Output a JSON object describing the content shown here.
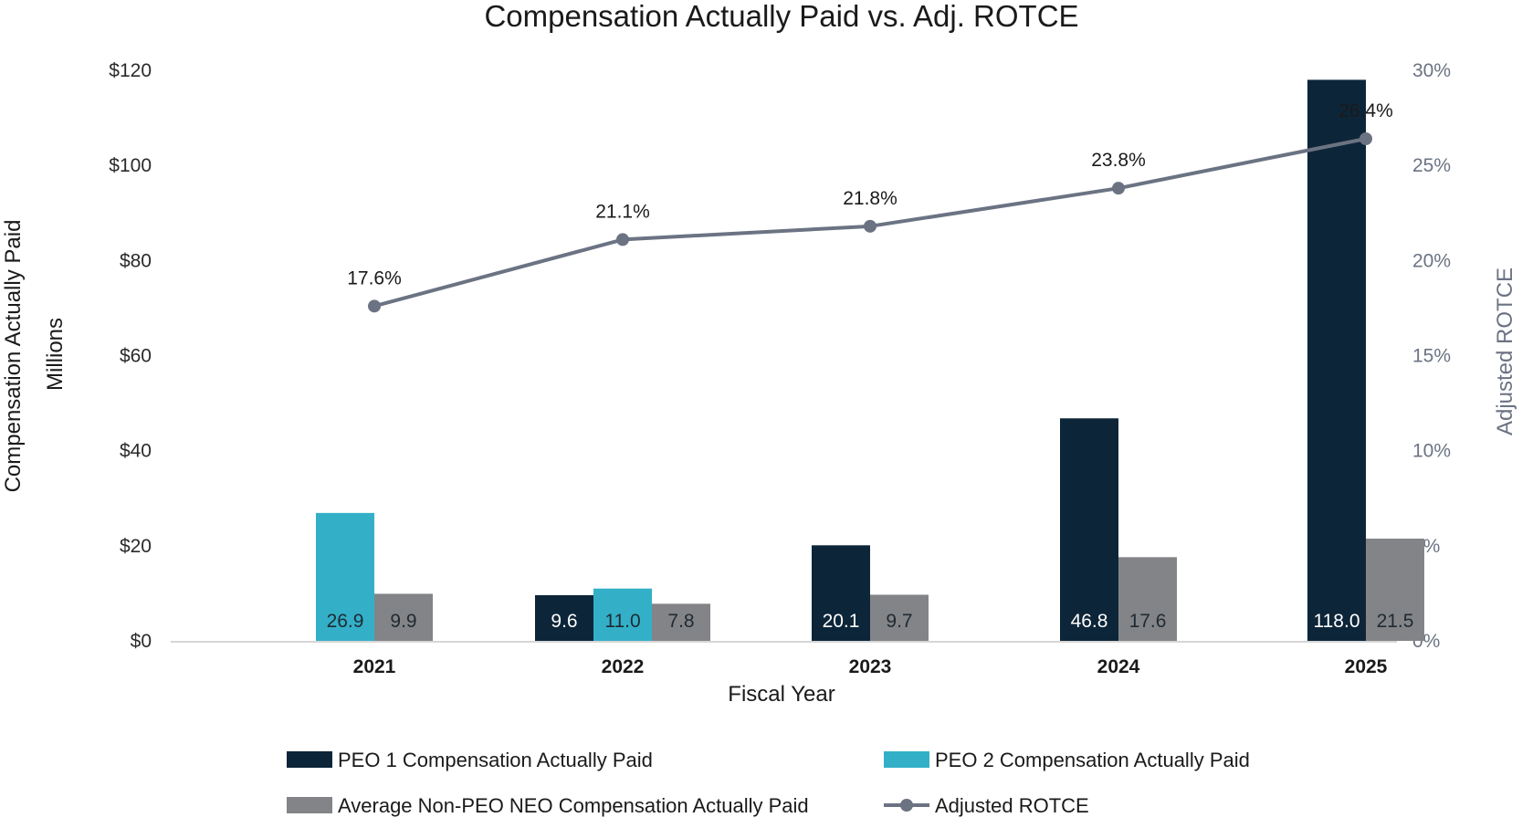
{
  "chart_data": {
    "type": "bar",
    "title": "Compensation Actually Paid vs. Adj. ROTCE",
    "xlabel": "Fiscal Year",
    "ylabel": "Compensation Actually Paid",
    "ylabel_unit": "Millions",
    "y2label": "Adjusted ROTCE",
    "categories": [
      "2021",
      "2022",
      "2023",
      "2024",
      "2025"
    ],
    "ylim": [
      0,
      120
    ],
    "y2lim": [
      0,
      30
    ],
    "y_ticks": [
      "$0",
      "$20",
      "$40",
      "$60",
      "$80",
      "$100",
      "$120"
    ],
    "y2_ticks": [
      "0%",
      "5%",
      "10%",
      "15%",
      "20%",
      "25%",
      "30%"
    ],
    "grid": false,
    "legend_position": "bottom",
    "series": [
      {
        "name": "PEO 1 Compensation Actually Paid",
        "type": "bar",
        "axis": "left",
        "color": "#0d2538",
        "values": [
          null,
          9.6,
          20.1,
          46.8,
          118.0
        ],
        "labels": [
          "",
          "9.6",
          "20.1",
          "46.8",
          "118.0"
        ]
      },
      {
        "name": "PEO 2 Compensation Actually Paid",
        "type": "bar",
        "axis": "left",
        "color": "#33b0c8",
        "values": [
          26.9,
          11.0,
          null,
          null,
          null
        ],
        "labels": [
          "26.9",
          "11.0",
          "",
          "",
          ""
        ]
      },
      {
        "name": "Average Non-PEO NEO Compensation Actually Paid",
        "type": "bar",
        "axis": "left",
        "color": "#838487",
        "values": [
          9.9,
          7.8,
          9.7,
          17.6,
          21.5
        ],
        "labels": [
          "9.9",
          "7.8",
          "9.7",
          "17.6",
          "21.5"
        ]
      },
      {
        "name": "Adjusted ROTCE",
        "type": "line",
        "axis": "right",
        "color": "#6b7383",
        "values": [
          17.6,
          21.1,
          21.8,
          23.8,
          26.4
        ],
        "labels": [
          "17.6%",
          "21.1%",
          "21.8%",
          "23.8%",
          "26.4%"
        ]
      }
    ]
  }
}
